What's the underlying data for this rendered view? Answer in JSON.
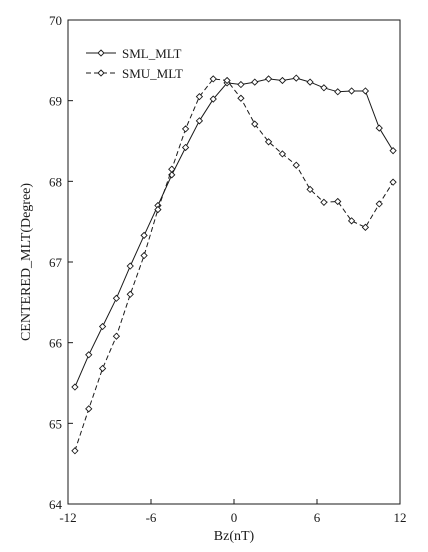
{
  "chart_data": {
    "type": "line",
    "title": "",
    "xlabel": "Bz(nT)",
    "ylabel": "CENTERED_MLT(Degree)",
    "xlim": [
      -12,
      12
    ],
    "ylim": [
      64,
      70
    ],
    "xticks": [
      -12,
      -6,
      0,
      6,
      12
    ],
    "xtick_labels": [
      "-12",
      "-6",
      "0",
      "6",
      "12"
    ],
    "yticks": [
      64,
      65,
      66,
      67,
      68,
      69,
      70
    ],
    "ytick_labels": [
      "64",
      "65",
      "66",
      "67",
      "68",
      "69",
      "70"
    ],
    "grid": false,
    "legend_position": "top-left",
    "marker": "diamond",
    "colors": {
      "line": "#1a1a1a",
      "marker_fill": "#ffffff"
    },
    "series": [
      {
        "name": "SML_MLT",
        "dash": "solid",
        "x": [
          -11.5,
          -10.5,
          -9.5,
          -8.5,
          -7.5,
          -6.5,
          -5.5,
          -4.5,
          -3.5,
          -2.5,
          -1.5,
          -0.5,
          0.5,
          1.5,
          2.5,
          3.5,
          4.5,
          5.5,
          6.5,
          7.5,
          8.5,
          9.5,
          10.5,
          11.5
        ],
        "y": [
          65.45,
          65.85,
          66.2,
          66.55,
          66.95,
          67.33,
          67.7,
          68.08,
          68.42,
          68.75,
          69.02,
          69.22,
          69.2,
          69.23,
          69.27,
          69.25,
          69.28,
          69.23,
          69.16,
          69.11,
          69.12,
          69.12,
          68.66,
          68.38
        ]
      },
      {
        "name": "SMU_MLT",
        "dash": "dashed",
        "x": [
          -11.5,
          -10.5,
          -9.5,
          -8.5,
          -7.5,
          -6.5,
          -5.5,
          -4.5,
          -3.5,
          -2.5,
          -1.5,
          -0.5,
          0.5,
          1.5,
          2.5,
          3.5,
          4.5,
          5.5,
          6.5,
          7.5,
          8.5,
          9.5,
          10.5,
          11.5
        ],
        "y": [
          64.66,
          65.18,
          65.68,
          66.08,
          66.6,
          67.08,
          67.65,
          68.15,
          68.65,
          69.05,
          69.27,
          69.25,
          69.03,
          68.71,
          68.49,
          68.34,
          68.2,
          67.9,
          67.74,
          67.75,
          67.51,
          67.43,
          67.72,
          67.99
        ]
      }
    ]
  }
}
